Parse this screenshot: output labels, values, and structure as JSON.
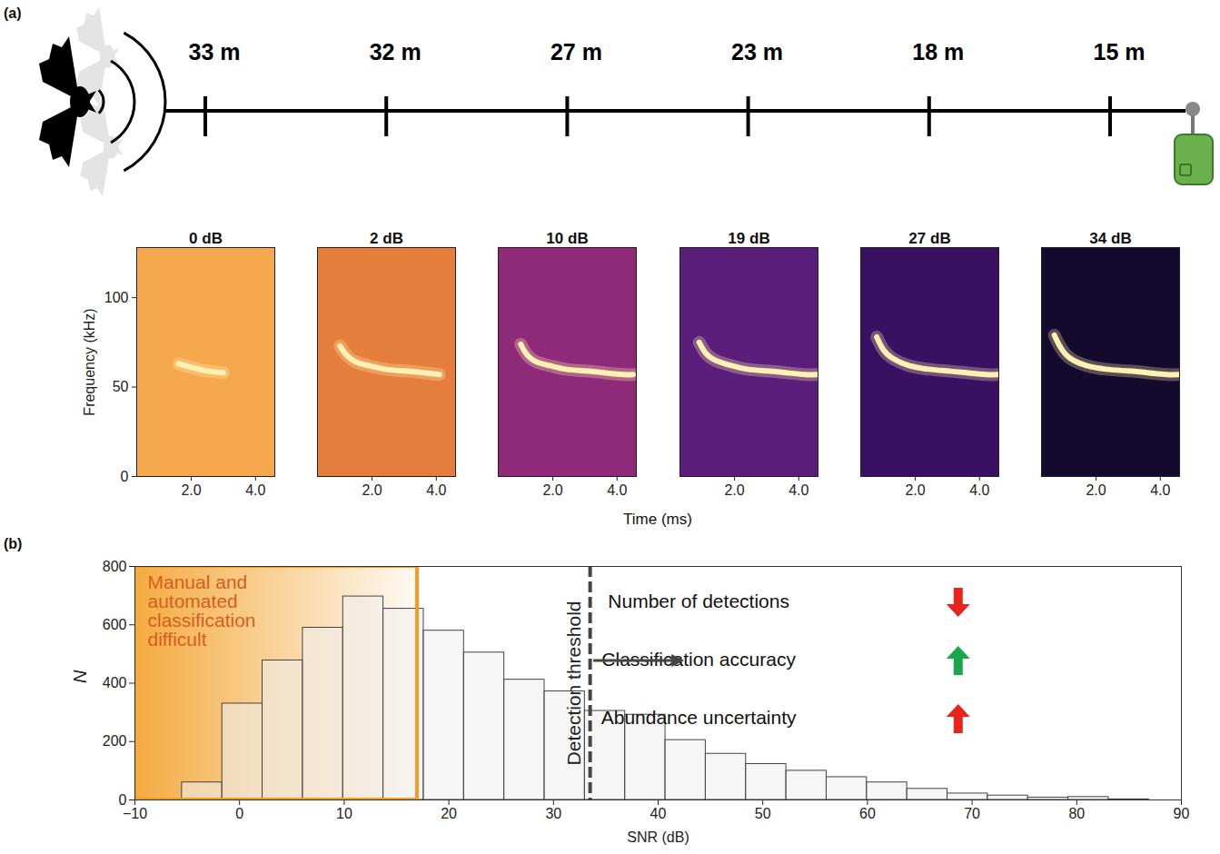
{
  "panel_a": {
    "label": "(a)",
    "distances": [
      "33 m",
      "32 m",
      "27 m",
      "23 m",
      "18 m",
      "15 m"
    ]
  },
  "chart_data": [
    {
      "type": "spectrogram",
      "xlabel": "Time (ms)",
      "ylabel": "Frequency (kHz)",
      "xlim": [
        0.3,
        4.6
      ],
      "ylim": [
        0,
        128
      ],
      "xticks": [
        2,
        4
      ],
      "yticks": [
        0,
        50,
        100
      ],
      "color": "#fff0b3",
      "series": [
        {
          "name": "0 dB",
          "color": "#f6a94c",
          "x": [
            1.6,
            2.0,
            2.5,
            3.0
          ],
          "values": [
            63,
            61,
            59,
            58
          ]
        },
        {
          "name": "2 dB",
          "color": "#e57d3c",
          "x": [
            1.0,
            1.2,
            1.5,
            1.9,
            2.4,
            3.0,
            3.6,
            4.1
          ],
          "values": [
            73,
            68,
            64,
            62,
            60,
            59,
            58,
            57
          ]
        },
        {
          "name": "10 dB",
          "color": "#8e2a78",
          "x": [
            1.0,
            1.2,
            1.5,
            1.9,
            2.4,
            3.0,
            3.6,
            4.2,
            4.5
          ],
          "values": [
            74,
            68,
            64,
            62,
            60,
            59,
            58,
            57,
            57
          ]
        },
        {
          "name": "19 dB",
          "color": "#5b1d7a",
          "x": [
            0.9,
            1.1,
            1.4,
            1.9,
            2.4,
            3.0,
            3.6,
            4.2,
            4.6
          ],
          "values": [
            75,
            69,
            65,
            62,
            60,
            59,
            58,
            57,
            57
          ]
        },
        {
          "name": "27 dB",
          "color": "#3a1062",
          "x": [
            0.8,
            1.0,
            1.3,
            1.8,
            2.4,
            3.0,
            3.6,
            4.2,
            4.6
          ],
          "values": [
            78,
            71,
            66,
            62,
            60,
            59,
            58,
            57,
            57
          ]
        },
        {
          "name": "34 dB",
          "color": "#140a2e",
          "x": [
            0.7,
            0.9,
            1.2,
            1.7,
            2.3,
            3.0,
            3.6,
            4.2,
            4.6
          ],
          "values": [
            79,
            72,
            66,
            62,
            60,
            59,
            58,
            57,
            57
          ]
        }
      ]
    },
    {
      "type": "histogram",
      "panel_label": "(b)",
      "xlabel": "SNR (dB)",
      "ylabel": "N",
      "bins": [
        -5.5,
        -1.65,
        2.2,
        6.05,
        9.9,
        13.75,
        17.6,
        21.45,
        25.3,
        29.15,
        33.0,
        36.85,
        40.7,
        44.55,
        48.4,
        52.25,
        56.1,
        59.95,
        63.8,
        67.65,
        71.5,
        75.35,
        79.2,
        83.05,
        86.9
      ],
      "values": [
        60,
        330,
        478,
        590,
        697,
        655,
        580,
        505,
        412,
        372,
        305,
        292,
        205,
        158,
        123,
        100,
        78,
        60,
        38,
        22,
        15,
        8,
        10,
        2
      ],
      "color": "#eeeeee",
      "xlim": [
        -10,
        90
      ],
      "xticks": [
        -10,
        0,
        10,
        20,
        30,
        40,
        50,
        60,
        70,
        80,
        90
      ],
      "ylim": [
        0,
        800
      ],
      "yticks": [
        0,
        200,
        400,
        600,
        800
      ],
      "region": {
        "x": [
          -10,
          17
        ],
        "label": "Manual and automated classification difficult",
        "color": "#f39c1f"
      },
      "threshold": {
        "x": 33.5,
        "label": "Detection threshold"
      },
      "effects": [
        {
          "label": "Number of detections",
          "direction": "down",
          "color": "#e8241c"
        },
        {
          "label": "Classification accuracy",
          "direction": "up",
          "color": "#1aa64a"
        },
        {
          "label": "Abundance uncertainty",
          "direction": "up",
          "color": "#e8241c"
        }
      ]
    }
  ]
}
